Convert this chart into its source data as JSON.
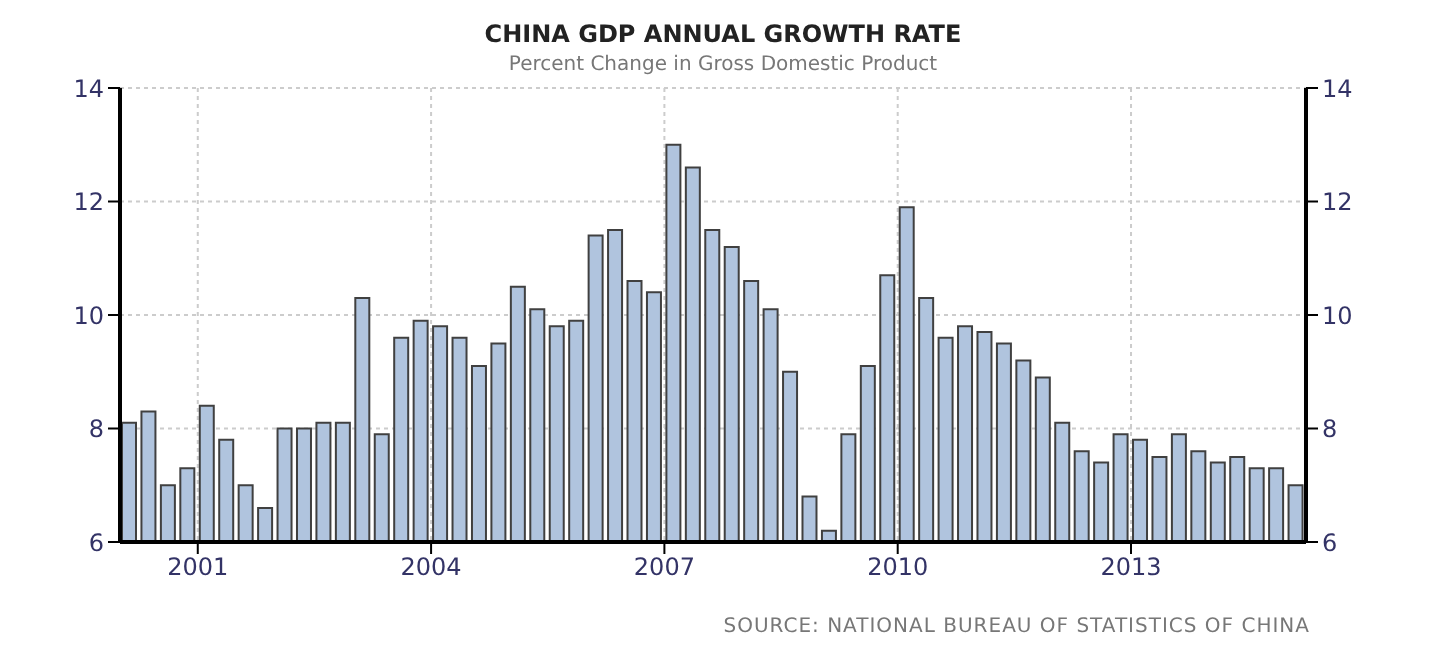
{
  "chart_data": {
    "type": "bar",
    "title": "CHINA GDP ANNUAL GROWTH RATE",
    "subtitle": "Percent Change in Gross Domestic Product",
    "annotations": [
      "SOURCE: NATIONAL BUREAU OF STATISTICS OF CHINA"
    ],
    "x": [
      2000.125,
      2000.375,
      2000.625,
      2000.875,
      2001.125,
      2001.375,
      2001.625,
      2001.875,
      2002.125,
      2002.375,
      2002.625,
      2002.875,
      2003.125,
      2003.375,
      2003.625,
      2003.875,
      2004.125,
      2004.375,
      2004.625,
      2004.875,
      2005.125,
      2005.375,
      2005.625,
      2005.875,
      2006.125,
      2006.375,
      2006.625,
      2006.875,
      2007.125,
      2007.375,
      2007.625,
      2007.875,
      2008.125,
      2008.375,
      2008.625,
      2008.875,
      2009.125,
      2009.375,
      2009.625,
      2009.875,
      2010.125,
      2010.375,
      2010.625,
      2010.875,
      2011.125,
      2011.375,
      2011.625,
      2011.875,
      2012.125,
      2012.375,
      2012.625,
      2012.875,
      2013.125,
      2013.375,
      2013.625,
      2013.875,
      2014.125,
      2014.375,
      2014.625,
      2014.875,
      2015.125
    ],
    "values": [
      8.1,
      8.3,
      7.0,
      7.3,
      8.4,
      7.8,
      7.0,
      6.6,
      8.0,
      8.0,
      8.1,
      8.1,
      10.3,
      7.9,
      9.6,
      9.9,
      9.8,
      9.6,
      9.1,
      9.5,
      10.5,
      10.1,
      9.8,
      9.9,
      11.4,
      11.5,
      10.6,
      10.4,
      13.0,
      12.6,
      11.5,
      11.2,
      10.6,
      10.1,
      9.0,
      6.8,
      6.2,
      7.9,
      9.1,
      10.7,
      11.9,
      10.3,
      9.6,
      9.8,
      9.7,
      9.5,
      9.2,
      8.9,
      8.1,
      7.6,
      7.4,
      7.9,
      7.8,
      7.5,
      7.9,
      7.6,
      7.4,
      7.5,
      7.3,
      7.3,
      7.0
    ],
    "color": "#b0c4de",
    "xlim": [
      2000,
      2015.25
    ],
    "xticks": [
      2001,
      2004,
      2007,
      2010,
      2013
    ],
    "ylim": [
      6,
      14
    ],
    "yticks": [
      6,
      8,
      10,
      12,
      14
    ],
    "y2lim": [
      6,
      14
    ],
    "y2ticks": [
      6,
      8,
      10,
      12,
      14
    ],
    "grid": true,
    "legend": false
  }
}
